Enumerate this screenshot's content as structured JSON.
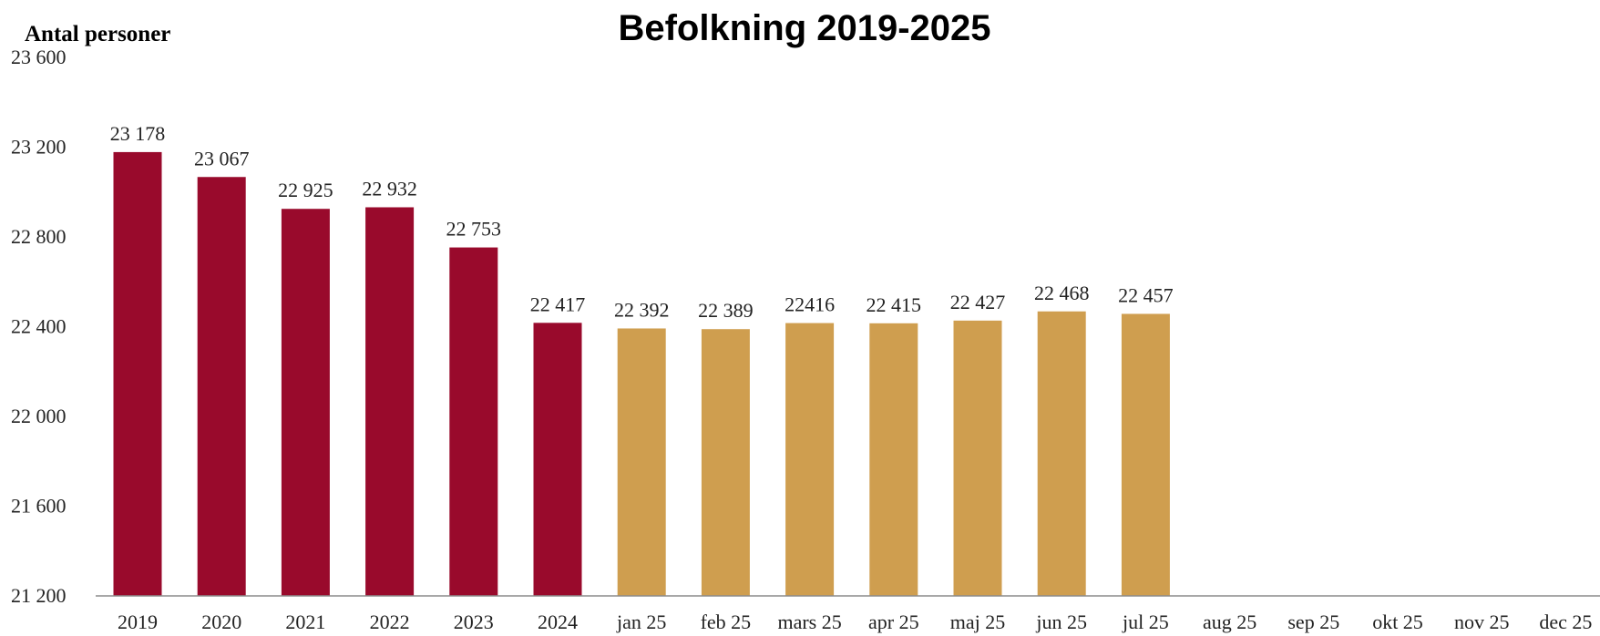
{
  "chart_data": {
    "type": "bar",
    "title": "Befolkning 2019-2025",
    "ylabel": "Antal personer",
    "xlabel": "",
    "ylim": [
      21200,
      23600
    ],
    "yticks": [
      "23 600",
      "23 200",
      "22 800",
      "22 400",
      "22 000",
      "21 600",
      "21 200"
    ],
    "ytick_values": [
      23600,
      23200,
      22800,
      22400,
      22000,
      21600,
      21200
    ],
    "grid": false,
    "categories": [
      "2019",
      "2020",
      "2021",
      "2022",
      "2023",
      "2024",
      "jan 25",
      "feb 25",
      "mars 25",
      "apr 25",
      "maj 25",
      "jun 25",
      "jul 25",
      "aug 25",
      "sep 25",
      "okt 25",
      "nov 25",
      "dec 25"
    ],
    "values": [
      23178,
      23067,
      22925,
      22932,
      22753,
      22417,
      22392,
      22389,
      22416,
      22415,
      22427,
      22468,
      22457,
      null,
      null,
      null,
      null,
      null
    ],
    "data_labels": [
      "23 178",
      "23 067",
      "22 925",
      "22 932",
      "22 753",
      "22 417",
      "22 392",
      "22 389",
      "22416",
      "22 415",
      "22 427",
      "22 468",
      "22 457",
      "",
      "",
      "",
      "",
      ""
    ],
    "colors": {
      "annual": "#990a2c",
      "monthly": "#cf9e4f"
    },
    "bar_colors": [
      "annual",
      "annual",
      "annual",
      "annual",
      "annual",
      "annual",
      "monthly",
      "monthly",
      "monthly",
      "monthly",
      "monthly",
      "monthly",
      "monthly",
      "monthly",
      "monthly",
      "monthly",
      "monthly",
      "monthly"
    ]
  }
}
